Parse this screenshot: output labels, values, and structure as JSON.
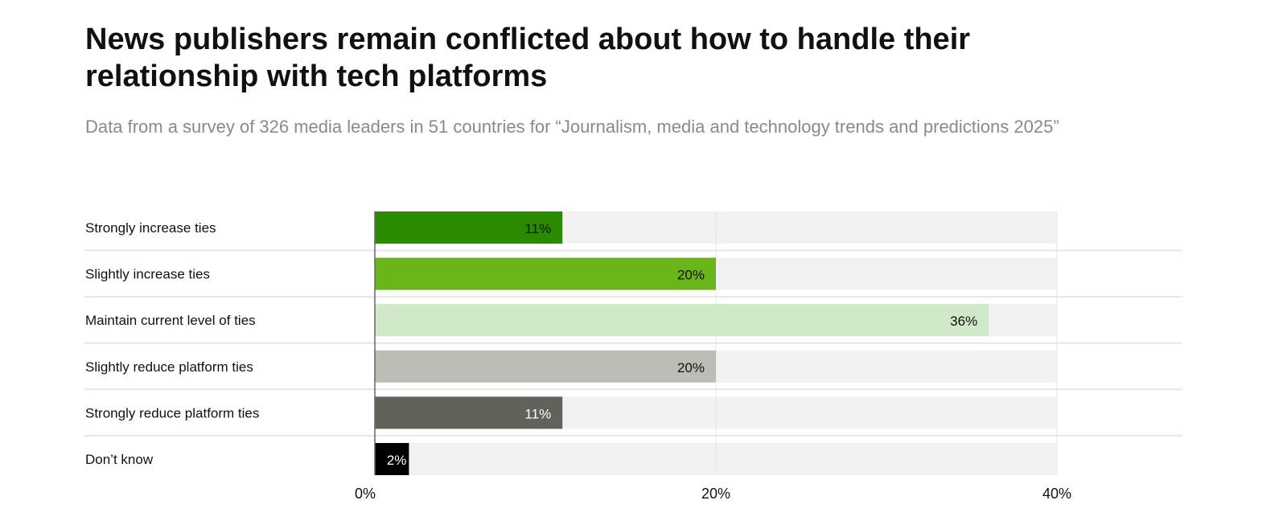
{
  "title": "News publishers remain conflicted about how to handle their relationship with tech platforms",
  "subtitle": "Data from a survey of 326 media leaders in 51 countries for “Journalism, media and technology trends and predictions 2025”",
  "chart_data": {
    "type": "bar",
    "orientation": "horizontal",
    "categories": [
      "Strongly increase ties",
      "Slightly increase ties",
      "Maintain current level of ties",
      "Slightly reduce platform ties",
      "Strongly reduce platform ties",
      "Don’t know"
    ],
    "values": [
      11,
      20,
      36,
      20,
      11,
      2
    ],
    "value_labels": [
      "11%",
      "20%",
      "36%",
      "20%",
      "11%",
      "2%"
    ],
    "colors": [
      "#2a8a00",
      "#6ab51a",
      "#d0e9c8",
      "#bdbdb8",
      "#5f635a",
      "#000000"
    ],
    "label_colors": [
      "#111111",
      "#111111",
      "#111111",
      "#111111",
      "#ffffff",
      "#ffffff"
    ],
    "xlim": [
      0,
      40
    ],
    "xticks": [
      "0%",
      "20%",
      "40%"
    ],
    "xtick_values": [
      0,
      20,
      40
    ],
    "grid": true
  }
}
